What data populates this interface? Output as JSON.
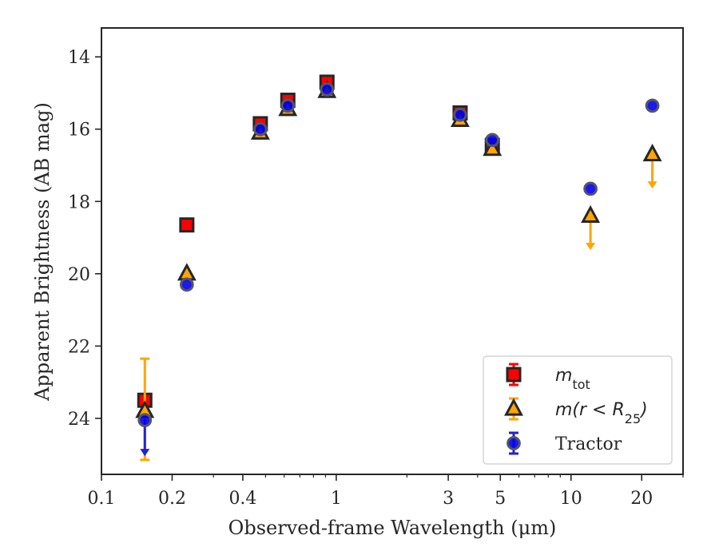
{
  "chart_data": {
    "type": "scatter",
    "xlabel": "Observed-frame Wavelength (μm)",
    "ylabel": "Apparent Brightness (AB mag)",
    "x_scale": "log",
    "xlim": [
      0.1,
      30
    ],
    "ylim": [
      25.55,
      13.2
    ],
    "y_inverted": true,
    "x_ticks": [
      {
        "value": 0.1,
        "label": "0.1"
      },
      {
        "value": 0.2,
        "label": "0.2"
      },
      {
        "value": 0.4,
        "label": "0.4"
      },
      {
        "value": 1,
        "label": "1"
      },
      {
        "value": 3,
        "label": "3"
      },
      {
        "value": 5,
        "label": "5"
      },
      {
        "value": 10,
        "label": "10"
      },
      {
        "value": 20,
        "label": "20"
      }
    ],
    "y_ticks": [
      {
        "value": 14,
        "label": "14"
      },
      {
        "value": 16,
        "label": "16"
      },
      {
        "value": 18,
        "label": "18"
      },
      {
        "value": 20,
        "label": "20"
      },
      {
        "value": 22,
        "label": "22"
      },
      {
        "value": 24,
        "label": "24"
      }
    ],
    "grid": false,
    "legend_position": "lower-right",
    "legend": [
      {
        "label_main": "m",
        "label_sub": "tot",
        "label_rest": "",
        "marker": "square"
      },
      {
        "label_main": "m(r < R",
        "label_sub": "25",
        "label_rest": ")",
        "marker": "triangle"
      },
      {
        "label_main": "Tractor",
        "label_sub": "",
        "label_rest": "",
        "marker": "circle"
      }
    ],
    "series": [
      {
        "marker": "square",
        "face_color": "#ff0000",
        "edge_color": "#262626",
        "error_color": "#ff0000",
        "points": [
          {
            "x": 0.153,
            "y": 23.5,
            "err_lo": 0.0,
            "err_hi": 0.0,
            "upper_limit": false
          },
          {
            "x": 0.231,
            "y": 18.65,
            "err_lo": 0.0,
            "err_hi": 0.0,
            "upper_limit": false
          },
          {
            "x": 0.475,
            "y": 15.85,
            "err_lo": 0.0,
            "err_hi": 0.0,
            "upper_limit": false
          },
          {
            "x": 0.622,
            "y": 15.2,
            "err_lo": 0.0,
            "err_hi": 0.0,
            "upper_limit": false
          },
          {
            "x": 0.913,
            "y": 14.7,
            "err_lo": 0.0,
            "err_hi": 0.0,
            "upper_limit": false
          },
          {
            "x": 3.37,
            "y": 15.55,
            "err_lo": 0.0,
            "err_hi": 0.0,
            "upper_limit": false
          },
          {
            "x": 4.62,
            "y": 16.45,
            "err_lo": 0.0,
            "err_hi": 0.0,
            "upper_limit": false
          }
        ]
      },
      {
        "marker": "triangle",
        "face_color": "#ffa500",
        "edge_color": "#262626",
        "error_color": "#ffa500",
        "points": [
          {
            "x": 0.153,
            "y": 23.8,
            "err_lo": 1.45,
            "err_hi": 1.35,
            "upper_limit": false
          },
          {
            "x": 0.231,
            "y": 20.0,
            "err_lo": 0.0,
            "err_hi": 0.0,
            "upper_limit": false
          },
          {
            "x": 0.475,
            "y": 16.1,
            "err_lo": 0.0,
            "err_hi": 0.0,
            "upper_limit": false
          },
          {
            "x": 0.622,
            "y": 15.45,
            "err_lo": 0.0,
            "err_hi": 0.0,
            "upper_limit": false
          },
          {
            "x": 0.913,
            "y": 14.95,
            "err_lo": 0.0,
            "err_hi": 0.0,
            "upper_limit": false
          },
          {
            "x": 3.37,
            "y": 15.75,
            "err_lo": 0.0,
            "err_hi": 0.0,
            "upper_limit": false
          },
          {
            "x": 4.62,
            "y": 16.55,
            "err_lo": 0.0,
            "err_hi": 0.0,
            "upper_limit": false
          },
          {
            "x": 12.1,
            "y": 18.4,
            "err_lo": 0.0,
            "err_hi": 0.9,
            "upper_limit": true
          },
          {
            "x": 22.2,
            "y": 16.7,
            "err_lo": 0.0,
            "err_hi": 0.9,
            "upper_limit": true
          }
        ]
      },
      {
        "marker": "circle",
        "face_color": "#0000ee",
        "edge_color": "#262626",
        "error_color": "#2222cc",
        "points": [
          {
            "x": 0.153,
            "y": 24.05,
            "err_lo": 0.0,
            "err_hi": 0.95,
            "upper_limit": true
          },
          {
            "x": 0.231,
            "y": 20.3,
            "err_lo": 0.0,
            "err_hi": 0.0,
            "upper_limit": false
          },
          {
            "x": 0.475,
            "y": 16.0,
            "err_lo": 0.0,
            "err_hi": 0.0,
            "upper_limit": false
          },
          {
            "x": 0.622,
            "y": 15.35,
            "err_lo": 0.0,
            "err_hi": 0.0,
            "upper_limit": false
          },
          {
            "x": 0.913,
            "y": 14.9,
            "err_lo": 0.0,
            "err_hi": 0.0,
            "upper_limit": false
          },
          {
            "x": 3.37,
            "y": 15.6,
            "err_lo": 0.0,
            "err_hi": 0.0,
            "upper_limit": false
          },
          {
            "x": 4.62,
            "y": 16.3,
            "err_lo": 0.0,
            "err_hi": 0.0,
            "upper_limit": false
          },
          {
            "x": 12.1,
            "y": 17.65,
            "err_lo": 0.0,
            "err_hi": 0.0,
            "upper_limit": false
          },
          {
            "x": 22.2,
            "y": 15.35,
            "err_lo": 0.0,
            "err_hi": 0.0,
            "upper_limit": false
          }
        ]
      }
    ]
  }
}
